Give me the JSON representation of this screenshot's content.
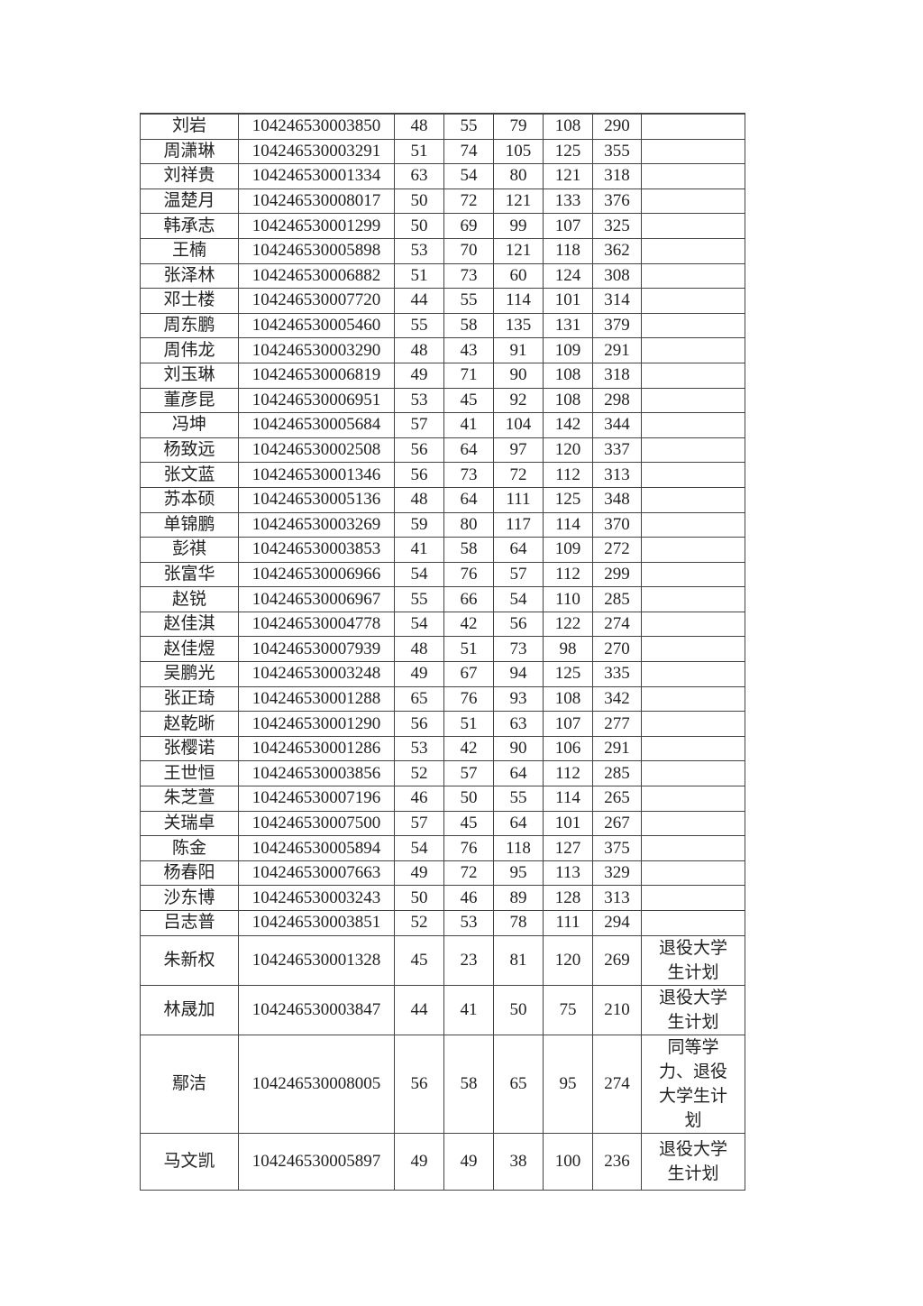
{
  "table": {
    "rows": [
      [
        "刘岩",
        "104246530003850",
        48,
        55,
        79,
        108,
        290
      ],
      [
        "周潇琳",
        "104246530003291",
        51,
        74,
        105,
        125,
        355
      ],
      [
        "刘祥贵",
        "104246530001334",
        63,
        54,
        80,
        121,
        318
      ],
      [
        "温楚月",
        "104246530008017",
        50,
        72,
        121,
        133,
        376
      ],
      [
        "韩承志",
        "104246530001299",
        50,
        69,
        99,
        107,
        325
      ],
      [
        "王楠",
        "104246530005898",
        53,
        70,
        121,
        118,
        362
      ],
      [
        "张泽林",
        "104246530006882",
        51,
        73,
        60,
        124,
        308
      ],
      [
        "邓士楼",
        "104246530007720",
        44,
        55,
        114,
        101,
        314
      ],
      [
        "周东鹏",
        "104246530005460",
        55,
        58,
        135,
        131,
        379
      ],
      [
        "周伟龙",
        "104246530003290",
        48,
        43,
        91,
        109,
        291
      ],
      [
        "刘玉琳",
        "104246530006819",
        49,
        71,
        90,
        108,
        318
      ],
      [
        "董彦昆",
        "104246530006951",
        53,
        45,
        92,
        108,
        298
      ],
      [
        "冯坤",
        "104246530005684",
        57,
        41,
        104,
        142,
        344
      ],
      [
        "杨致远",
        "104246530002508",
        56,
        64,
        97,
        120,
        337
      ],
      [
        "张文蓝",
        "104246530001346",
        56,
        73,
        72,
        112,
        313
      ],
      [
        "苏本硕",
        "104246530005136",
        48,
        64,
        111,
        125,
        348
      ],
      [
        "单锦鹏",
        "104246530003269",
        59,
        80,
        117,
        114,
        370
      ],
      [
        "彭祺",
        "104246530003853",
        41,
        58,
        64,
        109,
        272
      ],
      [
        "张富华",
        "104246530006966",
        54,
        76,
        57,
        112,
        299
      ],
      [
        "赵锐",
        "104246530006967",
        55,
        66,
        54,
        110,
        285
      ],
      [
        "赵佳淇",
        "104246530004778",
        54,
        42,
        56,
        122,
        274
      ],
      [
        "赵佳煜",
        "104246530007939",
        48,
        51,
        73,
        98,
        270
      ],
      [
        "吴鹏光",
        "104246530003248",
        49,
        67,
        94,
        125,
        335
      ],
      [
        "张正琦",
        "104246530001288",
        65,
        76,
        93,
        108,
        342
      ],
      [
        "赵乾晰",
        "104246530001290",
        56,
        51,
        63,
        107,
        277
      ],
      [
        "张樱诺",
        "104246530001286",
        53,
        42,
        90,
        106,
        291
      ],
      [
        "王世恒",
        "104246530003856",
        52,
        57,
        64,
        112,
        285
      ],
      [
        "朱芝萱",
        "104246530007196",
        46,
        50,
        55,
        114,
        265
      ],
      [
        "关瑞卓",
        "104246530007500",
        57,
        45,
        64,
        101,
        267
      ],
      [
        "陈金",
        "104246530005894",
        54,
        76,
        118,
        127,
        375
      ],
      [
        "杨春阳",
        "104246530007663",
        49,
        72,
        95,
        113,
        329
      ],
      [
        "沙东博",
        "104246530003243",
        50,
        46,
        89,
        128,
        313
      ],
      [
        "吕志普",
        "104246530003851",
        52,
        53,
        78,
        111,
        294
      ],
      [
        "朱新权",
        "104246530001328",
        45,
        23,
        81,
        120,
        269,
        "退役大学生计划"
      ],
      [
        "林晟加",
        "104246530003847",
        44,
        41,
        50,
        75,
        210,
        "退役大学生计划"
      ],
      [
        "鄢洁",
        "104246530008005",
        56,
        58,
        65,
        95,
        274,
        "同等学力、退役大学生计划"
      ],
      [
        "马文凯",
        "104246530005897",
        49,
        49,
        38,
        100,
        236,
        "退役大学生计划"
      ]
    ]
  }
}
